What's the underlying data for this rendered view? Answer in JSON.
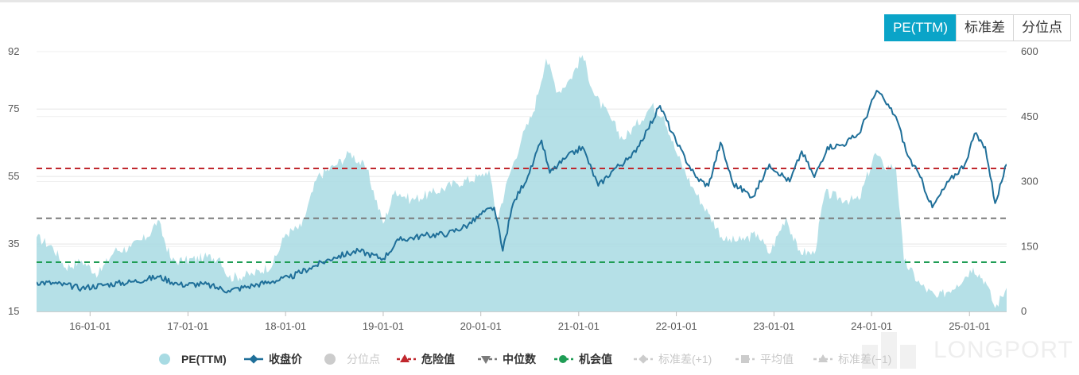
{
  "tabs": [
    {
      "label": "PE(TTM)",
      "active": true
    },
    {
      "label": "标准差",
      "active": false
    },
    {
      "label": "分位点",
      "active": false
    }
  ],
  "legend": [
    {
      "label": "PE(TTM)",
      "color": "#a8dbe3",
      "symbol": "circle",
      "active": true
    },
    {
      "label": "收盘价",
      "color": "#1f6f99",
      "symbol": "diamond-line",
      "active": true
    },
    {
      "label": "分位点",
      "color": "#cccccc",
      "symbol": "circle",
      "active": false
    },
    {
      "label": "危险值",
      "color": "#c0272d",
      "symbol": "triangle-up-dash",
      "active": true
    },
    {
      "label": "中位数",
      "color": "#7b7b7b",
      "symbol": "triangle-down-dash",
      "active": true
    },
    {
      "label": "机会值",
      "color": "#1f9d55",
      "symbol": "circle-dash",
      "active": true
    },
    {
      "label": "标准差(+1)",
      "color": "#cccccc",
      "symbol": "diamond-dash",
      "active": false
    },
    {
      "label": "平均值",
      "color": "#cccccc",
      "symbol": "square-dash",
      "active": false
    },
    {
      "label": "标准差(−1)",
      "color": "#cccccc",
      "symbol": "triangle-dash",
      "active": false
    }
  ],
  "watermark": {
    "text": "LONGPORT"
  },
  "chart_data": {
    "type": "area",
    "x_ticks": [
      "16-01-01",
      "17-01-01",
      "18-01-01",
      "19-01-01",
      "20-01-01",
      "21-01-01",
      "22-01-01",
      "23-01-01",
      "24-01-01",
      "25-01-01"
    ],
    "x_range": [
      "2015-06-15",
      "2025-05-20"
    ],
    "y_left": {
      "min": 15,
      "max": 92,
      "ticks": [
        15,
        35,
        55,
        75,
        92
      ]
    },
    "y_right": {
      "min": 0,
      "max": 600,
      "ticks": [
        0,
        150,
        300,
        450,
        600
      ]
    },
    "grid": true,
    "series": [
      {
        "name": "PE(TTM)",
        "axis": "left",
        "color": "#a8dbe3",
        "points": [
          [
            "2015-06-15",
            37
          ],
          [
            "2015-08-15",
            34
          ],
          [
            "2015-10-01",
            28
          ],
          [
            "2015-12-01",
            30
          ],
          [
            "2016-02-01",
            26
          ],
          [
            "2016-04-01",
            33
          ],
          [
            "2016-06-01",
            34
          ],
          [
            "2016-08-01",
            37
          ],
          [
            "2016-09-10",
            42
          ],
          [
            "2016-11-01",
            30
          ],
          [
            "2016-12-20",
            30
          ],
          [
            "2017-03-01",
            31
          ],
          [
            "2017-05-01",
            31
          ],
          [
            "2017-06-01",
            25
          ],
          [
            "2017-09-01",
            26
          ],
          [
            "2017-11-15",
            29
          ],
          [
            "2018-01-01",
            38
          ],
          [
            "2018-03-01",
            40
          ],
          [
            "2018-05-01",
            55
          ],
          [
            "2018-07-01",
            58
          ],
          [
            "2018-09-01",
            62
          ],
          [
            "2018-11-01",
            57
          ],
          [
            "2019-01-01",
            41
          ],
          [
            "2019-02-15",
            51
          ],
          [
            "2019-04-15",
            48
          ],
          [
            "2019-07-01",
            50
          ],
          [
            "2019-10-01",
            53
          ],
          [
            "2020-01-01",
            55
          ],
          [
            "2020-02-01",
            57
          ],
          [
            "2020-03-01",
            42
          ],
          [
            "2020-04-15",
            55
          ],
          [
            "2020-06-01",
            66
          ],
          [
            "2020-07-15",
            74
          ],
          [
            "2020-09-01",
            90
          ],
          [
            "2020-10-15",
            80
          ],
          [
            "2020-12-01",
            84
          ],
          [
            "2021-01-15",
            91
          ],
          [
            "2021-03-01",
            79
          ],
          [
            "2021-05-01",
            72
          ],
          [
            "2021-06-15",
            66
          ],
          [
            "2021-08-01",
            70
          ],
          [
            "2021-10-01",
            76
          ],
          [
            "2021-11-15",
            73
          ],
          [
            "2022-01-01",
            62
          ],
          [
            "2022-03-01",
            52
          ],
          [
            "2022-05-01",
            44
          ],
          [
            "2022-07-01",
            36
          ],
          [
            "2022-09-01",
            36
          ],
          [
            "2022-11-01",
            38
          ],
          [
            "2022-12-15",
            32
          ],
          [
            "2023-02-15",
            43
          ],
          [
            "2023-04-01",
            33
          ],
          [
            "2023-06-01",
            32
          ],
          [
            "2023-07-10",
            50
          ],
          [
            "2023-10-01",
            48
          ],
          [
            "2023-11-15",
            48
          ],
          [
            "2024-01-15",
            62
          ],
          [
            "2024-02-15",
            58
          ],
          [
            "2024-04-01",
            58
          ],
          [
            "2024-05-01",
            30
          ],
          [
            "2024-07-01",
            23
          ],
          [
            "2024-09-01",
            19
          ],
          [
            "2024-11-15",
            23
          ],
          [
            "2025-01-15",
            28
          ],
          [
            "2025-03-01",
            24
          ],
          [
            "2025-04-07",
            16
          ],
          [
            "2025-05-20",
            22
          ]
        ]
      },
      {
        "name": "收盘价",
        "axis": "right",
        "color": "#1f6f99",
        "points": [
          [
            "2015-06-15",
            68
          ],
          [
            "2015-09-01",
            64
          ],
          [
            "2015-12-01",
            54
          ],
          [
            "2016-03-01",
            62
          ],
          [
            "2016-06-01",
            68
          ],
          [
            "2016-09-15",
            80
          ],
          [
            "2016-12-01",
            62
          ],
          [
            "2017-03-01",
            63
          ],
          [
            "2017-06-01",
            48
          ],
          [
            "2017-09-01",
            60
          ],
          [
            "2017-11-15",
            70
          ],
          [
            "2018-01-15",
            78
          ],
          [
            "2018-04-01",
            100
          ],
          [
            "2018-07-01",
            125
          ],
          [
            "2018-10-01",
            140
          ],
          [
            "2019-01-01",
            122
          ],
          [
            "2019-03-01",
            165
          ],
          [
            "2019-06-01",
            175
          ],
          [
            "2019-09-01",
            180
          ],
          [
            "2019-11-15",
            200
          ],
          [
            "2020-01-15",
            230
          ],
          [
            "2020-02-20",
            240
          ],
          [
            "2020-03-23",
            140
          ],
          [
            "2020-05-01",
            250
          ],
          [
            "2020-07-01",
            320
          ],
          [
            "2020-08-15",
            395
          ],
          [
            "2020-09-15",
            320
          ],
          [
            "2020-11-15",
            355
          ],
          [
            "2021-01-15",
            380
          ],
          [
            "2021-03-15",
            290
          ],
          [
            "2021-05-15",
            330
          ],
          [
            "2021-07-15",
            355
          ],
          [
            "2021-09-15",
            420
          ],
          [
            "2021-11-01",
            475
          ],
          [
            "2022-01-01",
            390
          ],
          [
            "2022-03-15",
            310
          ],
          [
            "2022-05-01",
            290
          ],
          [
            "2022-06-15",
            390
          ],
          [
            "2022-08-01",
            295
          ],
          [
            "2022-10-15",
            265
          ],
          [
            "2022-12-15",
            340
          ],
          [
            "2023-03-01",
            300
          ],
          [
            "2023-04-15",
            370
          ],
          [
            "2023-06-01",
            310
          ],
          [
            "2023-07-20",
            380
          ],
          [
            "2023-09-15",
            385
          ],
          [
            "2023-11-15",
            410
          ],
          [
            "2024-01-20",
            510
          ],
          [
            "2024-02-20",
            485
          ],
          [
            "2024-04-01",
            450
          ],
          [
            "2024-05-15",
            360
          ],
          [
            "2024-07-01",
            310
          ],
          [
            "2024-08-15",
            240
          ],
          [
            "2024-10-15",
            300
          ],
          [
            "2024-12-15",
            340
          ],
          [
            "2025-01-20",
            410
          ],
          [
            "2025-03-01",
            380
          ],
          [
            "2025-04-07",
            250
          ],
          [
            "2025-05-20",
            340
          ]
        ]
      },
      {
        "name": "危险值",
        "axis": "left",
        "color": "#c0272d",
        "value": 57.4,
        "style": "dashed"
      },
      {
        "name": "中位数",
        "axis": "left",
        "color": "#7b7b7b",
        "value": 42.6,
        "style": "dashed"
      },
      {
        "name": "机会值",
        "axis": "left",
        "color": "#1f9d55",
        "value": 29.6,
        "style": "dashed"
      }
    ]
  }
}
